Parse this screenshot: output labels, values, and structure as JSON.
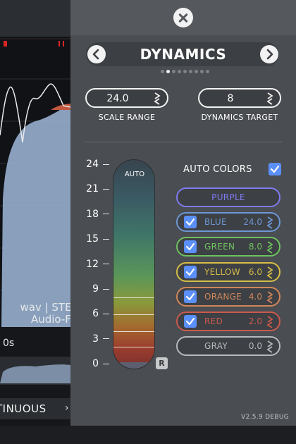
{
  "background": {
    "file_line1": "wav | STEI",
    "file_line2": "Audio-Fi",
    "time_label": "0s",
    "mode_label": "TINUOUS",
    "mode_arrow": "›"
  },
  "panel": {
    "close_icon": "close-icon",
    "title": "DYNAMICS",
    "prev_icon": "chevron-left-icon",
    "next_icon": "chevron-right-icon",
    "page_count": 9,
    "active_page": 1,
    "scale_range": {
      "value": "24.0",
      "label": "SCALE RANGE"
    },
    "dynamics_target": {
      "value": "8",
      "label": "DYNAMICS TARGET"
    },
    "meter": {
      "ticks": [
        "24",
        "21",
        "18",
        "15",
        "12",
        "9",
        "6",
        "3",
        "0"
      ],
      "auto_label": "AUTO",
      "reset_label": "R"
    },
    "auto_colors": {
      "label": "AUTO COLORS",
      "checked": true
    },
    "colors": [
      {
        "name": "PURPLE",
        "value": "",
        "checked": false,
        "color": "#7f7cf0"
      },
      {
        "name": "BLUE",
        "value": "24.0",
        "checked": true,
        "color": "#6d97d6"
      },
      {
        "name": "GREEN",
        "value": "8.0",
        "checked": true,
        "color": "#6fc260"
      },
      {
        "name": "YELLOW",
        "value": "6.0",
        "checked": true,
        "color": "#d6bd48"
      },
      {
        "name": "ORANGE",
        "value": "4.0",
        "checked": true,
        "color": "#d1875a"
      },
      {
        "name": "RED",
        "value": "2.0",
        "checked": true,
        "color": "#cb5a4f"
      },
      {
        "name": "GRAY",
        "value": "0.0",
        "checked": false,
        "color": "#b7b9bb"
      }
    ],
    "version": "V2.5.9 DEBUG"
  }
}
